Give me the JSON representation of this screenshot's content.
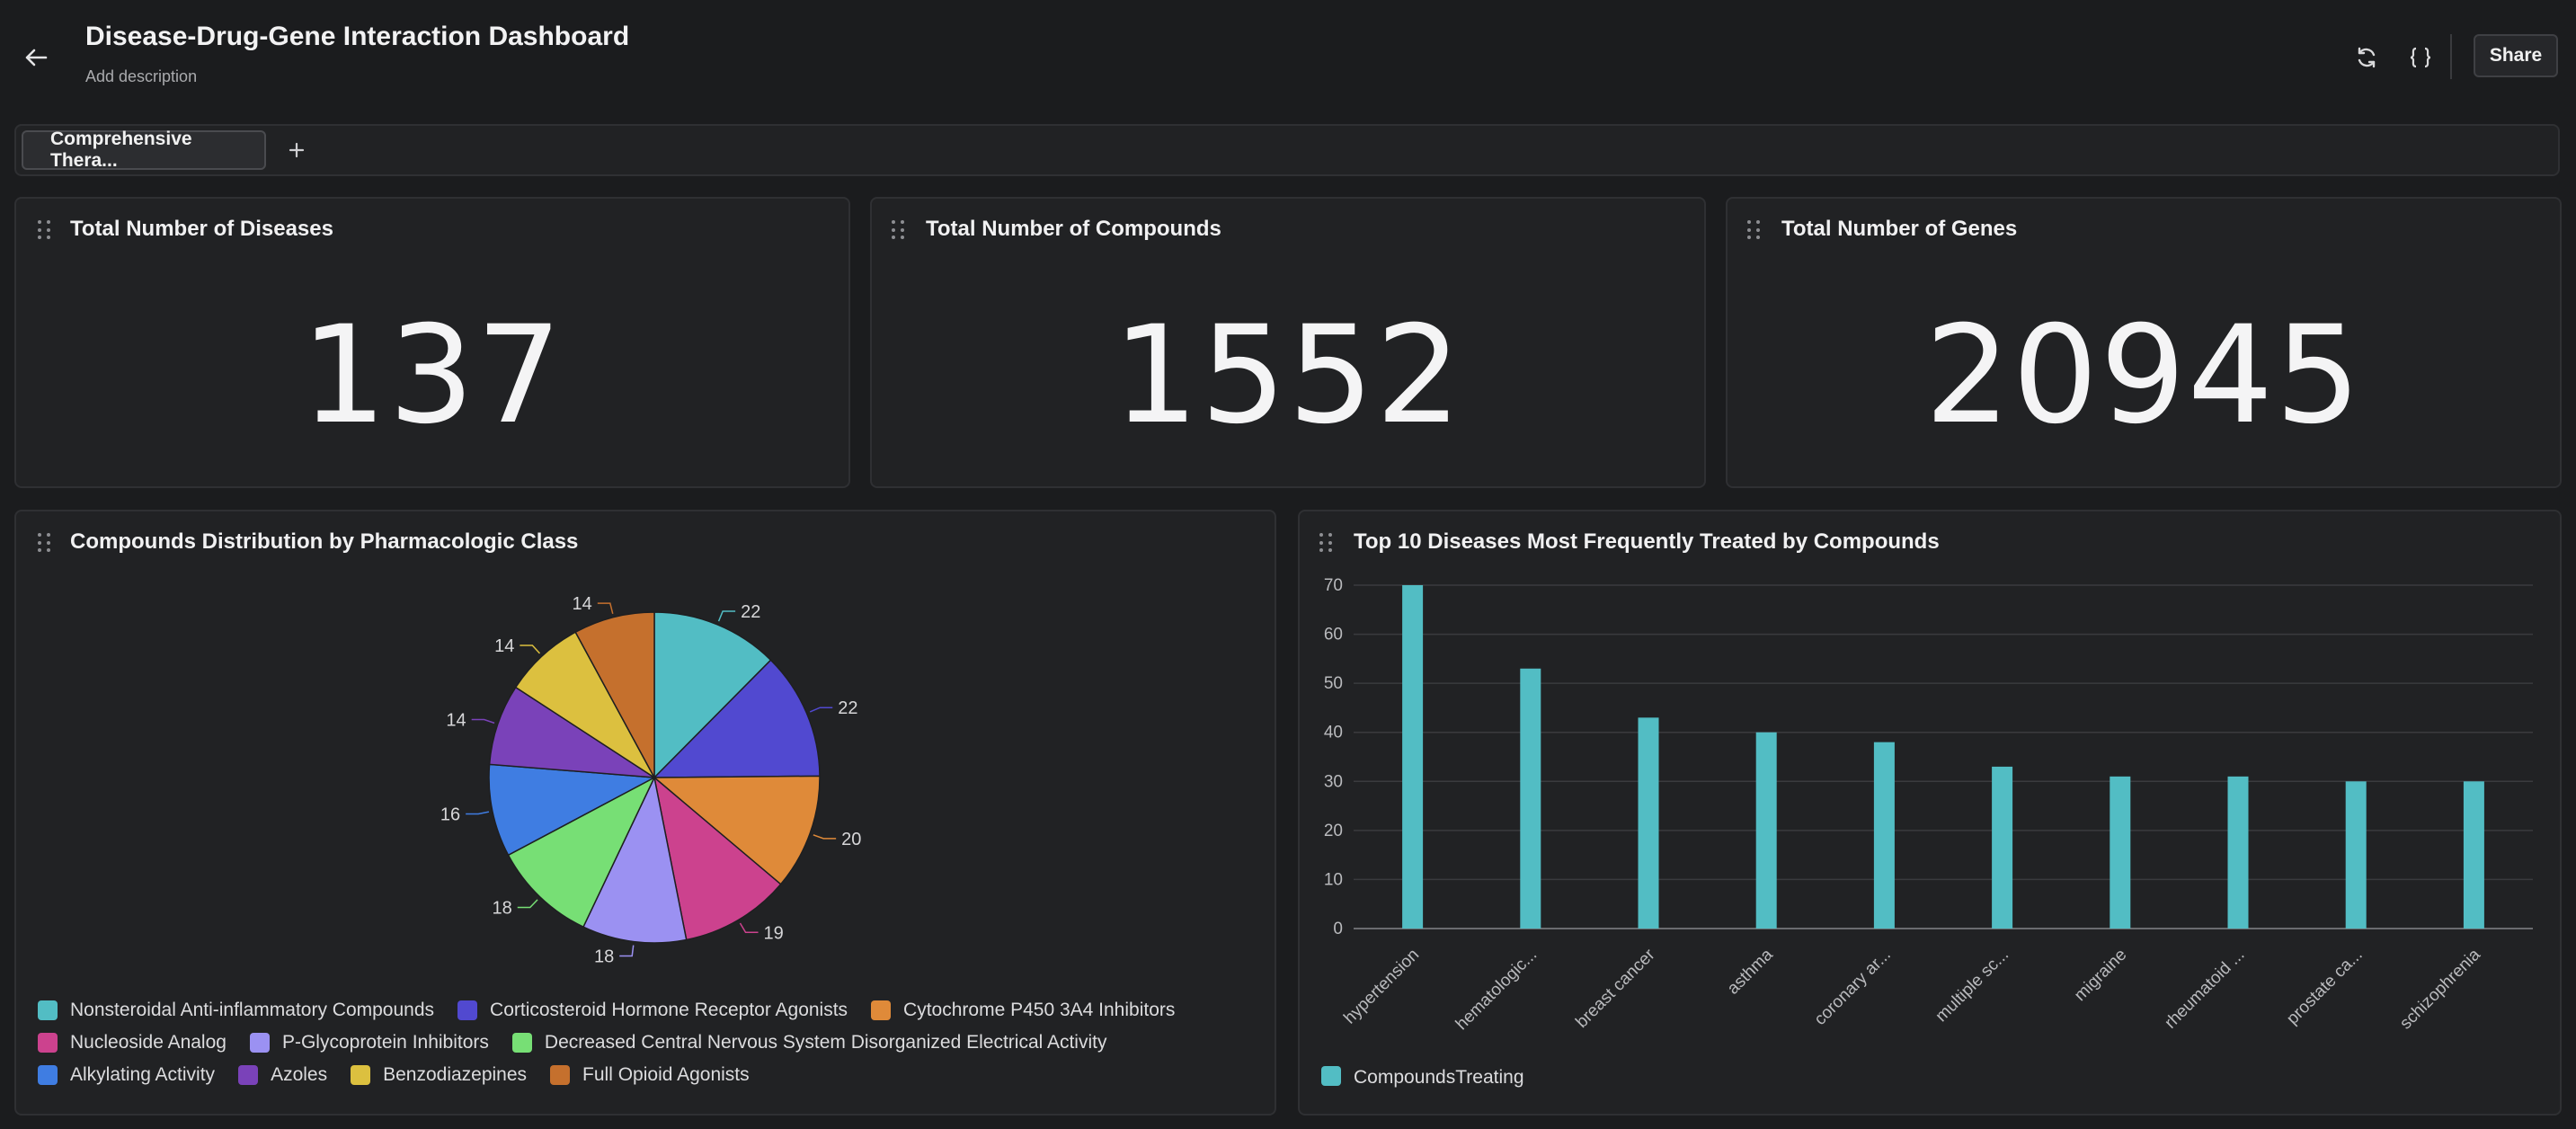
{
  "header": {
    "title": "Disease-Drug-Gene Interaction Dashboard",
    "description": "Add description",
    "share_label": "Share",
    "icons": [
      "arrow-left-icon",
      "refresh-icon",
      "braces-icon"
    ]
  },
  "tabs": [
    {
      "label": "Comprehensive Thera..."
    }
  ],
  "tab_add_icon": "plus-icon",
  "metrics": [
    {
      "title": "Total Number of Diseases",
      "value": "137"
    },
    {
      "title": "Total Number of Compounds",
      "value": "1552"
    },
    {
      "title": "Total Number of Genes",
      "value": "20945"
    }
  ],
  "pie_card": {
    "title": "Compounds Distribution by Pharmacologic Class"
  },
  "bar_card": {
    "title": "Top 10 Diseases Most Frequently Treated by Compounds"
  },
  "chart_data": [
    {
      "type": "pie",
      "title": "Compounds Distribution by Pharmacologic Class",
      "slices": [
        {
          "label": "Nonsteroidal Anti-inflammatory Compounds",
          "value": 22,
          "color": "#52bdc4"
        },
        {
          "label": "Corticosteroid Hormone Receptor Agonists",
          "value": 22,
          "color": "#5149d0"
        },
        {
          "label": "Cytochrome P450 3A4 Inhibitors",
          "value": 20,
          "color": "#df8a39"
        },
        {
          "label": "Nucleoside Analog",
          "value": 19,
          "color": "#cc428e"
        },
        {
          "label": "P-Glycoprotein Inhibitors",
          "value": 18,
          "color": "#9b91f2"
        },
        {
          "label": "Decreased Central Nervous System Disorganized Electrical Activity",
          "value": 18,
          "color": "#77df75"
        },
        {
          "label": "Alkylating Activity",
          "value": 16,
          "color": "#3f7de2"
        },
        {
          "label": "Azoles",
          "value": 14,
          "color": "#7a42b9"
        },
        {
          "label": "Benzodiazepines",
          "value": 14,
          "color": "#dcc03f"
        },
        {
          "label": "Full Opioid Agonists",
          "value": 14,
          "color": "#c5702d"
        }
      ],
      "legend_placement": "bottom-left"
    },
    {
      "type": "bar",
      "title": "Top 10 Diseases Most Frequently Treated by Compounds",
      "categories": [
        "hypertension",
        "hematologic...",
        "breast cancer",
        "asthma",
        "coronary ar...",
        "multiple sc...",
        "migraine",
        "rheumatoid ...",
        "prostate ca...",
        "schizophrenia"
      ],
      "series": [
        {
          "name": "CompoundsTreating",
          "values": [
            70,
            53,
            43,
            40,
            38,
            33,
            31,
            31,
            30,
            30
          ],
          "color": "#52bdc4"
        }
      ],
      "ylim": [
        0,
        70
      ],
      "yticks": [
        0,
        10,
        20,
        30,
        40,
        50,
        60,
        70
      ],
      "grid": true,
      "legend_placement": "bottom-left"
    }
  ]
}
